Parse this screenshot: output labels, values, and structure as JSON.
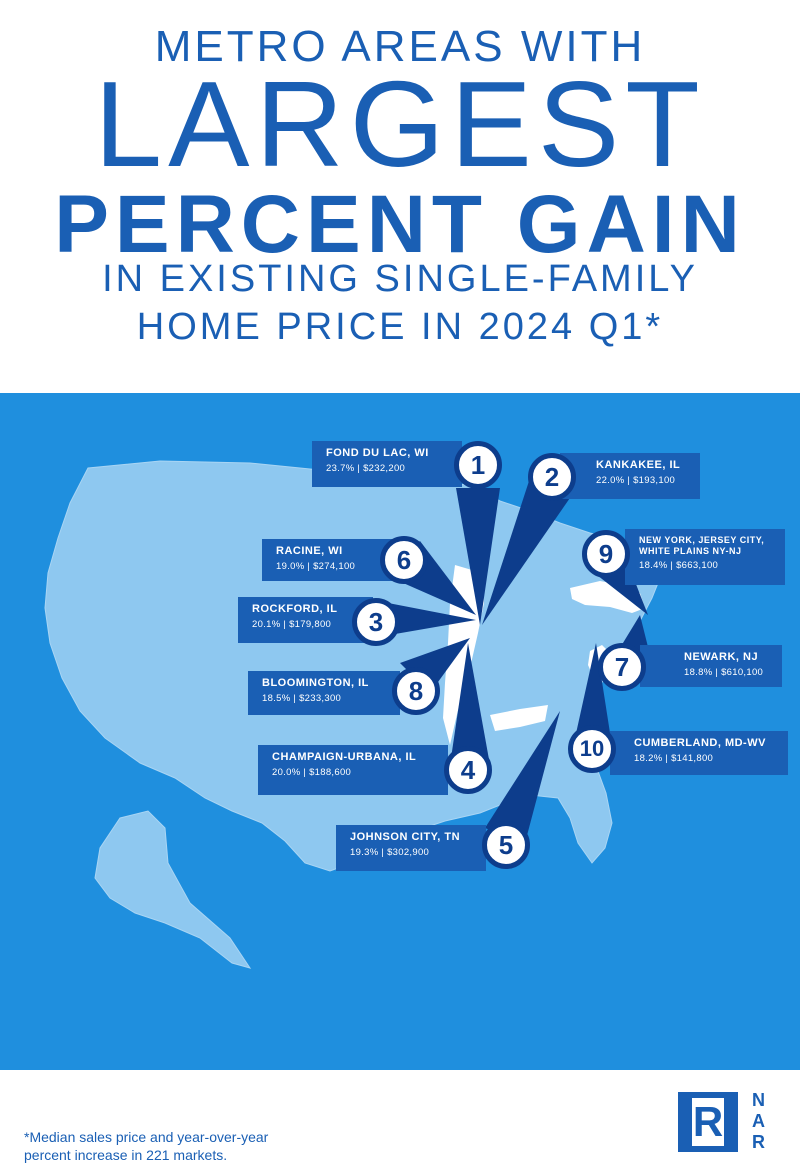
{
  "title": {
    "line1": "METRO AREAS WITH",
    "line2": "LARGEST",
    "line3": "PERCENT GAIN",
    "line4": "IN EXISTING SINGLE-FAMILY",
    "line5": "HOME PRICE IN 2024 Q1*"
  },
  "colors": {
    "brand_blue": "#1a5fb4",
    "map_background": "#1f8fde",
    "pin_dark": "#0d3d8c",
    "state_fill": "#8ec8f0"
  },
  "metros": [
    {
      "rank": "1",
      "name": "FOND DU LAC, WI",
      "stat": "23.7% | $232,200"
    },
    {
      "rank": "2",
      "name": "KANKAKEE, IL",
      "stat": "22.0% | $193,100"
    },
    {
      "rank": "6",
      "name": "RACINE, WI",
      "stat": "19.0% | $274,100"
    },
    {
      "rank": "9",
      "name": "NEW YORK, JERSEY CITY, WHITE PLAINS NY-NJ",
      "stat": "18.4% | $663,100"
    },
    {
      "rank": "3",
      "name": "ROCKFORD, IL",
      "stat": "20.1% | $179,800"
    },
    {
      "rank": "7",
      "name": "NEWARK, NJ",
      "stat": "18.8% | $610,100"
    },
    {
      "rank": "8",
      "name": "BLOOMINGTON, IL",
      "stat": "18.5% | $233,300"
    },
    {
      "rank": "10",
      "name": "CUMBERLAND, MD-WV",
      "stat": "18.2% | $141,800"
    },
    {
      "rank": "4",
      "name": "CHAMPAIGN-URBANA, IL",
      "stat": "20.0% | $188,600"
    },
    {
      "rank": "5",
      "name": "JOHNSON CITY, TN",
      "stat": "19.3% | $302,900"
    }
  ],
  "footnote": {
    "line1": "*Median sales price and year-over-year",
    "line2": "percent increase in 221 markets."
  },
  "logo": {
    "letter": "R",
    "text_n": "N",
    "text_a": "A",
    "text_r": "R"
  }
}
